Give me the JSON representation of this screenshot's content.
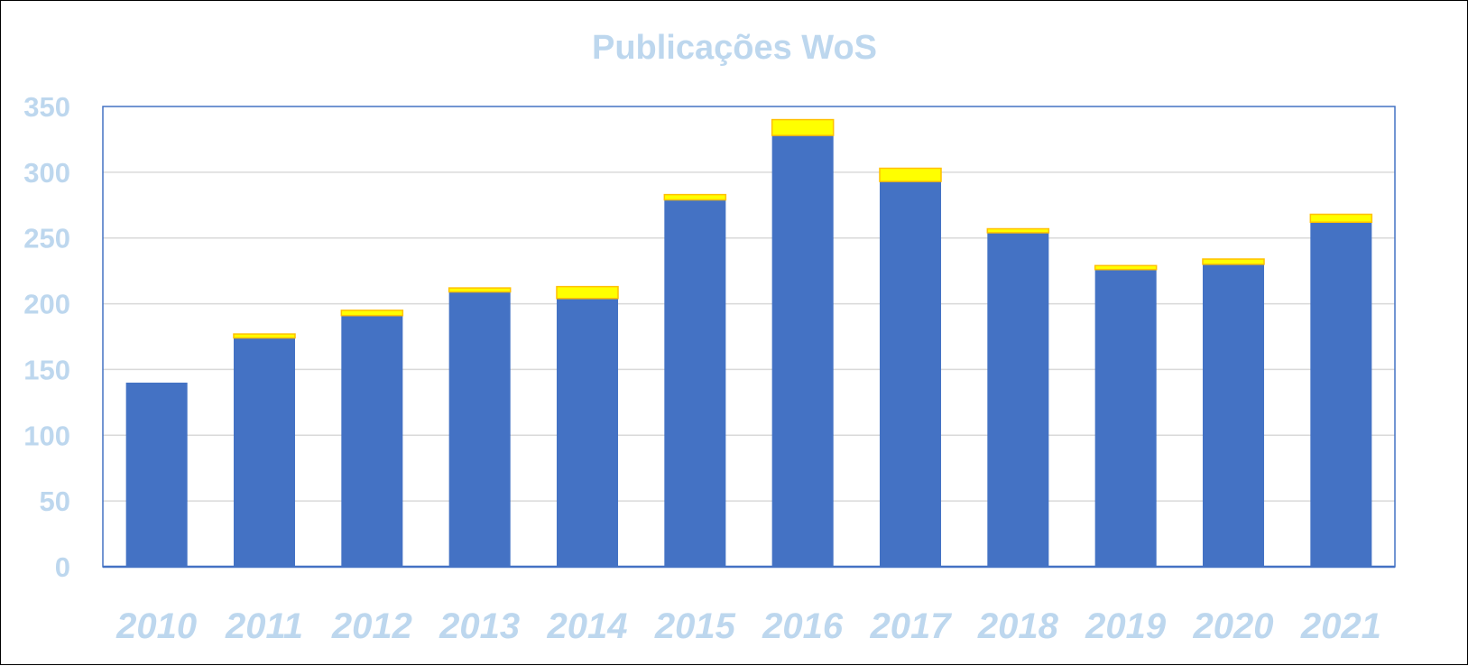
{
  "chart_data": {
    "type": "bar",
    "stacked": true,
    "title": "Publicações WoS",
    "xlabel": "",
    "ylabel": "",
    "categories": [
      "2010",
      "2011",
      "2012",
      "2013",
      "2014",
      "2015",
      "2016",
      "2017",
      "2018",
      "2019",
      "2020",
      "2021"
    ],
    "series": [
      {
        "color": "#4472C4",
        "values": [
          140,
          174,
          191,
          209,
          204,
          279,
          328,
          293,
          254,
          226,
          230,
          262
        ]
      },
      {
        "color": "#FFFF00",
        "values": [
          0,
          3,
          4,
          3,
          9,
          4,
          12,
          10,
          3,
          3,
          4,
          6
        ]
      }
    ],
    "yticks": [
      "0",
      "50",
      "100",
      "150",
      "200",
      "250",
      "300",
      "350"
    ],
    "ylim": [
      0,
      350
    ],
    "grid": true,
    "legend": "none",
    "colors": {
      "text": "#BDD7EE",
      "axis": "#4472C4",
      "grid": "#D9D9D9",
      "highlight_outline": "#FFC000"
    }
  }
}
